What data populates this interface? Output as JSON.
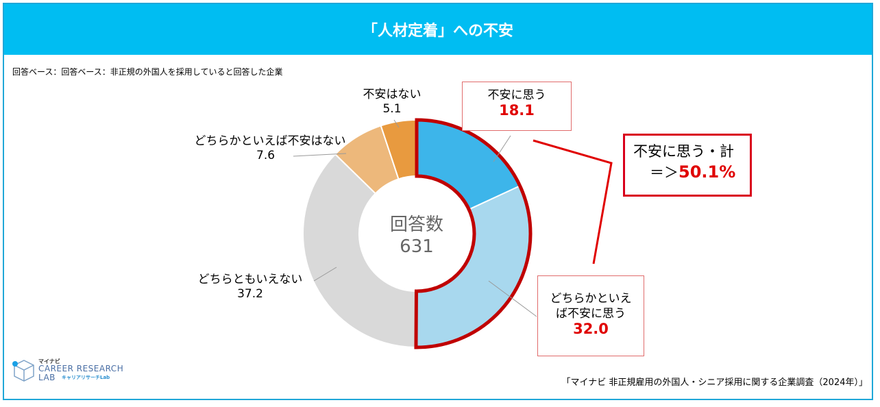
{
  "header": {
    "title": "「人材定着」への不安"
  },
  "base_note": "回答ベース：回答ベース：非正規の外国人を採用していると回答した企業",
  "center": {
    "label": "回答数",
    "value": "631"
  },
  "chart_data": {
    "type": "donut",
    "title": "「人材定着」への不安",
    "total_respondents": 631,
    "slices": [
      {
        "label": "不安に思う",
        "value": 18.1,
        "color": "#3db5ea"
      },
      {
        "label": "どちらかといえば不安に思う",
        "value": 32.0,
        "color": "#a8d8ee"
      },
      {
        "label": "どちらともいえない",
        "value": 37.2,
        "color": "#d9d9d9"
      },
      {
        "label": "どちらかといえば不安はない",
        "value": 7.6,
        "color": "#edb87b"
      },
      {
        "label": "不安はない",
        "value": 5.1,
        "color": "#e89a3f"
      }
    ],
    "highlight_color": "#c00000"
  },
  "labels": {
    "fuan_nai": {
      "text": "不安はない",
      "value": "5.1"
    },
    "docchi_nai": {
      "text": "どちらかといえば不安はない",
      "value": "7.6"
    },
    "docchi_mo": {
      "text": "どちらともいえない",
      "value": "37.2"
    },
    "fuan": {
      "text": "不安に思う",
      "value": "18.1"
    },
    "docchi_fuan": {
      "line1": "どちらかといえ",
      "line2": "ば不安に思う",
      "value": "32.0"
    }
  },
  "total": {
    "line1": "不安に思う・計",
    "prefix": "＝＞",
    "value": "50.1%"
  },
  "source": "「マイナビ 非正規雇用の外国人・シニア採用に関する企業調査（2024年）」",
  "logo": {
    "kana": "マイナビ",
    "line1": "CAREER RESEARCH",
    "line2": "LAB",
    "sub": "キャリアリサーチLab"
  }
}
